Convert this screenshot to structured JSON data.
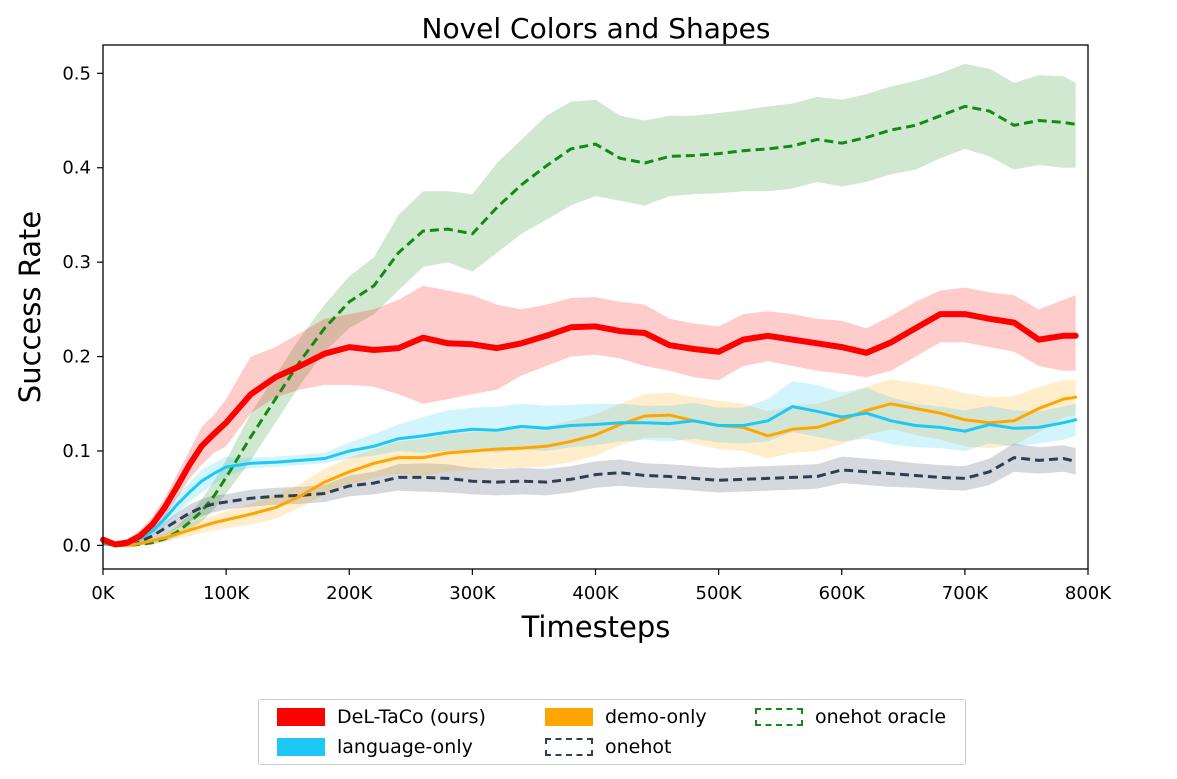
{
  "chart_data": {
    "type": "line",
    "title": "Novel Colors and Shapes",
    "xlabel": "Timesteps",
    "ylabel": "Success Rate",
    "xlim": [
      0,
      800000
    ],
    "ylim": [
      -0.025,
      0.53
    ],
    "xticks": [
      0,
      100000,
      200000,
      300000,
      400000,
      500000,
      600000,
      700000,
      800000
    ],
    "xtick_labels": [
      "0K",
      "100K",
      "200K",
      "300K",
      "400K",
      "500K",
      "600K",
      "700K",
      "800K"
    ],
    "yticks": [
      0.0,
      0.1,
      0.2,
      0.3,
      0.4,
      0.5
    ],
    "ytick_labels": [
      "0.0",
      "0.1",
      "0.2",
      "0.3",
      "0.4",
      "0.5"
    ],
    "grid": false,
    "legend_position": "bottom-outside",
    "series": [
      {
        "name": "DeL-TaCo (ours)",
        "color": "#ff0000",
        "dash": "solid",
        "width": "thick",
        "x": [
          0,
          10000,
          20000,
          30000,
          40000,
          50000,
          60000,
          70000,
          80000,
          90000,
          100000,
          120000,
          140000,
          160000,
          180000,
          200000,
          220000,
          240000,
          260000,
          280000,
          300000,
          320000,
          340000,
          360000,
          380000,
          400000,
          420000,
          440000,
          460000,
          480000,
          500000,
          520000,
          540000,
          560000,
          580000,
          600000,
          620000,
          640000,
          660000,
          680000,
          700000,
          720000,
          740000,
          760000,
          780000,
          790000
        ],
        "values": [
          0.006,
          0.001,
          0.003,
          0.01,
          0.022,
          0.04,
          0.062,
          0.085,
          0.105,
          0.118,
          0.13,
          0.16,
          0.178,
          0.19,
          0.203,
          0.21,
          0.207,
          0.209,
          0.22,
          0.214,
          0.213,
          0.209,
          0.214,
          0.222,
          0.231,
          0.232,
          0.227,
          0.225,
          0.212,
          0.208,
          0.205,
          0.218,
          0.222,
          0.218,
          0.214,
          0.21,
          0.204,
          0.215,
          0.23,
          0.245,
          0.245,
          0.24,
          0.236,
          0.218,
          0.222,
          0.222
        ],
        "lower": [
          0.002,
          0.0,
          0.0,
          0.005,
          0.015,
          0.03,
          0.05,
          0.07,
          0.085,
          0.098,
          0.105,
          0.14,
          0.157,
          0.165,
          0.17,
          0.17,
          0.168,
          0.16,
          0.15,
          0.155,
          0.16,
          0.165,
          0.18,
          0.19,
          0.2,
          0.202,
          0.198,
          0.19,
          0.185,
          0.178,
          0.175,
          0.19,
          0.195,
          0.19,
          0.185,
          0.182,
          0.178,
          0.185,
          0.2,
          0.215,
          0.215,
          0.21,
          0.205,
          0.19,
          0.185,
          0.185
        ],
        "upper": [
          0.01,
          0.004,
          0.007,
          0.016,
          0.03,
          0.05,
          0.075,
          0.1,
          0.125,
          0.138,
          0.155,
          0.2,
          0.21,
          0.225,
          0.24,
          0.245,
          0.25,
          0.26,
          0.275,
          0.27,
          0.265,
          0.255,
          0.25,
          0.255,
          0.262,
          0.263,
          0.258,
          0.255,
          0.24,
          0.235,
          0.232,
          0.245,
          0.248,
          0.245,
          0.24,
          0.238,
          0.23,
          0.243,
          0.258,
          0.27,
          0.273,
          0.268,
          0.265,
          0.25,
          0.26,
          0.265
        ]
      },
      {
        "name": "language-only",
        "color": "#1ec8f5",
        "dash": "solid",
        "width": "normal",
        "x": [
          0,
          10000,
          20000,
          30000,
          40000,
          50000,
          60000,
          70000,
          80000,
          90000,
          100000,
          110000,
          120000,
          140000,
          160000,
          180000,
          200000,
          220000,
          240000,
          260000,
          280000,
          300000,
          320000,
          340000,
          360000,
          380000,
          400000,
          420000,
          440000,
          460000,
          480000,
          500000,
          520000,
          540000,
          560000,
          580000,
          600000,
          620000,
          640000,
          660000,
          680000,
          700000,
          720000,
          740000,
          760000,
          780000,
          790000
        ],
        "values": [
          0.003,
          0.0,
          0.002,
          0.007,
          0.015,
          0.028,
          0.043,
          0.056,
          0.068,
          0.076,
          0.083,
          0.085,
          0.087,
          0.088,
          0.09,
          0.092,
          0.1,
          0.105,
          0.113,
          0.116,
          0.12,
          0.123,
          0.122,
          0.126,
          0.124,
          0.127,
          0.128,
          0.13,
          0.13,
          0.129,
          0.132,
          0.127,
          0.127,
          0.132,
          0.147,
          0.142,
          0.136,
          0.14,
          0.132,
          0.127,
          0.125,
          0.121,
          0.128,
          0.124,
          0.125,
          0.13,
          0.133
        ],
        "lower": [
          0.001,
          0.0,
          0.0,
          0.003,
          0.009,
          0.02,
          0.033,
          0.046,
          0.056,
          0.065,
          0.072,
          0.078,
          0.082,
          0.083,
          0.085,
          0.087,
          0.092,
          0.095,
          0.1,
          0.098,
          0.1,
          0.101,
          0.098,
          0.102,
          0.1,
          0.104,
          0.106,
          0.11,
          0.112,
          0.11,
          0.113,
          0.109,
          0.108,
          0.11,
          0.12,
          0.115,
          0.11,
          0.113,
          0.107,
          0.104,
          0.103,
          0.1,
          0.108,
          0.105,
          0.108,
          0.112,
          0.116
        ],
        "upper": [
          0.005,
          0.002,
          0.005,
          0.011,
          0.021,
          0.036,
          0.053,
          0.066,
          0.08,
          0.087,
          0.094,
          0.092,
          0.093,
          0.094,
          0.096,
          0.098,
          0.109,
          0.118,
          0.128,
          0.136,
          0.143,
          0.146,
          0.147,
          0.15,
          0.148,
          0.149,
          0.15,
          0.15,
          0.148,
          0.148,
          0.151,
          0.146,
          0.146,
          0.155,
          0.174,
          0.17,
          0.162,
          0.167,
          0.157,
          0.15,
          0.147,
          0.143,
          0.148,
          0.143,
          0.142,
          0.147,
          0.15
        ]
      },
      {
        "name": "demo-only",
        "color": "#ffa500",
        "dash": "solid",
        "width": "normal",
        "x": [
          0,
          10000,
          20000,
          30000,
          40000,
          50000,
          60000,
          70000,
          80000,
          90000,
          100000,
          120000,
          140000,
          160000,
          180000,
          200000,
          220000,
          240000,
          260000,
          280000,
          300000,
          320000,
          340000,
          360000,
          380000,
          400000,
          420000,
          440000,
          460000,
          480000,
          500000,
          520000,
          540000,
          560000,
          580000,
          600000,
          620000,
          640000,
          660000,
          680000,
          700000,
          720000,
          740000,
          760000,
          780000,
          790000
        ],
        "values": [
          0.003,
          0.0,
          0.0,
          0.002,
          0.005,
          0.008,
          0.012,
          0.016,
          0.02,
          0.024,
          0.027,
          0.033,
          0.04,
          0.052,
          0.067,
          0.078,
          0.087,
          0.093,
          0.093,
          0.098,
          0.1,
          0.102,
          0.103,
          0.105,
          0.11,
          0.117,
          0.128,
          0.137,
          0.138,
          0.132,
          0.127,
          0.125,
          0.116,
          0.123,
          0.125,
          0.133,
          0.143,
          0.15,
          0.145,
          0.14,
          0.133,
          0.13,
          0.132,
          0.145,
          0.155,
          0.157
        ],
        "lower": [
          0.001,
          0.0,
          0.0,
          0.0,
          0.002,
          0.004,
          0.007,
          0.01,
          0.013,
          0.016,
          0.018,
          0.022,
          0.028,
          0.04,
          0.054,
          0.064,
          0.072,
          0.076,
          0.074,
          0.078,
          0.08,
          0.082,
          0.082,
          0.084,
          0.088,
          0.095,
          0.106,
          0.114,
          0.114,
          0.108,
          0.102,
          0.1,
          0.092,
          0.098,
          0.1,
          0.107,
          0.117,
          0.123,
          0.117,
          0.112,
          0.105,
          0.103,
          0.106,
          0.12,
          0.135,
          0.138
        ],
        "upper": [
          0.005,
          0.002,
          0.002,
          0.005,
          0.009,
          0.013,
          0.018,
          0.023,
          0.028,
          0.032,
          0.036,
          0.044,
          0.053,
          0.065,
          0.081,
          0.093,
          0.102,
          0.11,
          0.113,
          0.118,
          0.12,
          0.122,
          0.124,
          0.126,
          0.132,
          0.139,
          0.15,
          0.16,
          0.162,
          0.157,
          0.153,
          0.15,
          0.142,
          0.148,
          0.15,
          0.158,
          0.168,
          0.176,
          0.172,
          0.168,
          0.161,
          0.157,
          0.158,
          0.168,
          0.175,
          0.176
        ]
      },
      {
        "name": "onehot",
        "color": "#2e3f55",
        "dash": "dashed",
        "width": "normal",
        "x": [
          0,
          10000,
          20000,
          30000,
          40000,
          50000,
          60000,
          70000,
          80000,
          90000,
          100000,
          120000,
          140000,
          160000,
          180000,
          200000,
          220000,
          240000,
          260000,
          280000,
          300000,
          320000,
          340000,
          360000,
          380000,
          400000,
          420000,
          440000,
          460000,
          480000,
          500000,
          520000,
          540000,
          560000,
          580000,
          600000,
          620000,
          640000,
          660000,
          680000,
          700000,
          720000,
          740000,
          760000,
          780000,
          790000
        ],
        "values": [
          0.003,
          0.0,
          0.001,
          0.004,
          0.01,
          0.018,
          0.026,
          0.034,
          0.04,
          0.044,
          0.046,
          0.05,
          0.052,
          0.053,
          0.055,
          0.063,
          0.066,
          0.072,
          0.072,
          0.071,
          0.068,
          0.067,
          0.068,
          0.067,
          0.07,
          0.075,
          0.077,
          0.074,
          0.073,
          0.071,
          0.069,
          0.07,
          0.071,
          0.072,
          0.073,
          0.08,
          0.078,
          0.076,
          0.074,
          0.072,
          0.071,
          0.078,
          0.093,
          0.09,
          0.092,
          0.089
        ],
        "lower": [
          0.001,
          0.0,
          0.0,
          0.001,
          0.005,
          0.011,
          0.018,
          0.025,
          0.031,
          0.035,
          0.038,
          0.041,
          0.043,
          0.044,
          0.046,
          0.052,
          0.054,
          0.058,
          0.057,
          0.056,
          0.054,
          0.053,
          0.054,
          0.053,
          0.056,
          0.061,
          0.063,
          0.061,
          0.06,
          0.058,
          0.056,
          0.057,
          0.058,
          0.059,
          0.06,
          0.066,
          0.064,
          0.062,
          0.061,
          0.059,
          0.058,
          0.064,
          0.078,
          0.076,
          0.078,
          0.075
        ],
        "upper": [
          0.005,
          0.002,
          0.003,
          0.007,
          0.015,
          0.025,
          0.034,
          0.043,
          0.049,
          0.053,
          0.054,
          0.059,
          0.061,
          0.062,
          0.064,
          0.074,
          0.078,
          0.086,
          0.087,
          0.086,
          0.082,
          0.081,
          0.082,
          0.081,
          0.084,
          0.089,
          0.091,
          0.087,
          0.086,
          0.084,
          0.082,
          0.083,
          0.084,
          0.085,
          0.086,
          0.094,
          0.092,
          0.09,
          0.087,
          0.085,
          0.084,
          0.092,
          0.108,
          0.104,
          0.106,
          0.103
        ]
      },
      {
        "name": "onehot oracle",
        "color": "#138a13",
        "dash": "dashed",
        "width": "normal",
        "x": [
          0,
          10000,
          20000,
          30000,
          40000,
          50000,
          60000,
          70000,
          80000,
          90000,
          100000,
          120000,
          140000,
          160000,
          180000,
          200000,
          220000,
          240000,
          260000,
          280000,
          300000,
          320000,
          340000,
          360000,
          380000,
          400000,
          420000,
          440000,
          460000,
          480000,
          500000,
          520000,
          540000,
          560000,
          580000,
          600000,
          620000,
          640000,
          660000,
          680000,
          700000,
          720000,
          740000,
          760000,
          780000,
          790000
        ],
        "values": [
          0.002,
          0.0,
          0.0,
          0.001,
          0.003,
          0.007,
          0.014,
          0.024,
          0.036,
          0.052,
          0.072,
          0.115,
          0.155,
          0.195,
          0.23,
          0.258,
          0.275,
          0.31,
          0.333,
          0.335,
          0.33,
          0.358,
          0.382,
          0.402,
          0.42,
          0.425,
          0.41,
          0.405,
          0.412,
          0.413,
          0.415,
          0.418,
          0.42,
          0.423,
          0.43,
          0.426,
          0.432,
          0.44,
          0.445,
          0.455,
          0.465,
          0.46,
          0.445,
          0.45,
          0.448,
          0.446
        ],
        "lower": [
          0.0,
          0.0,
          0.0,
          0.0,
          0.001,
          0.004,
          0.009,
          0.016,
          0.025,
          0.038,
          0.055,
          0.09,
          0.13,
          0.17,
          0.205,
          0.23,
          0.245,
          0.27,
          0.295,
          0.3,
          0.29,
          0.31,
          0.33,
          0.345,
          0.36,
          0.37,
          0.365,
          0.36,
          0.37,
          0.372,
          0.373,
          0.375,
          0.375,
          0.378,
          0.385,
          0.38,
          0.385,
          0.393,
          0.398,
          0.41,
          0.42,
          0.412,
          0.398,
          0.403,
          0.4,
          0.4
        ],
        "upper": [
          0.004,
          0.002,
          0.002,
          0.003,
          0.006,
          0.011,
          0.02,
          0.033,
          0.048,
          0.068,
          0.09,
          0.14,
          0.18,
          0.22,
          0.255,
          0.285,
          0.305,
          0.35,
          0.375,
          0.375,
          0.372,
          0.405,
          0.43,
          0.455,
          0.47,
          0.472,
          0.455,
          0.45,
          0.455,
          0.455,
          0.458,
          0.461,
          0.465,
          0.468,
          0.475,
          0.472,
          0.478,
          0.486,
          0.492,
          0.5,
          0.51,
          0.505,
          0.49,
          0.498,
          0.497,
          0.49
        ]
      }
    ]
  },
  "legend": {
    "items": [
      {
        "label": "DeL-TaCo (ours)",
        "color": "#ff0000",
        "style": "solid"
      },
      {
        "label": "language-only",
        "color": "#1ec8f5",
        "style": "solid"
      },
      {
        "label": "demo-only",
        "color": "#ffa500",
        "style": "solid"
      },
      {
        "label": "onehot",
        "color": "#2e3f55",
        "style": "dashed"
      },
      {
        "label": "onehot oracle",
        "color": "#138a13",
        "style": "dashed"
      }
    ]
  }
}
